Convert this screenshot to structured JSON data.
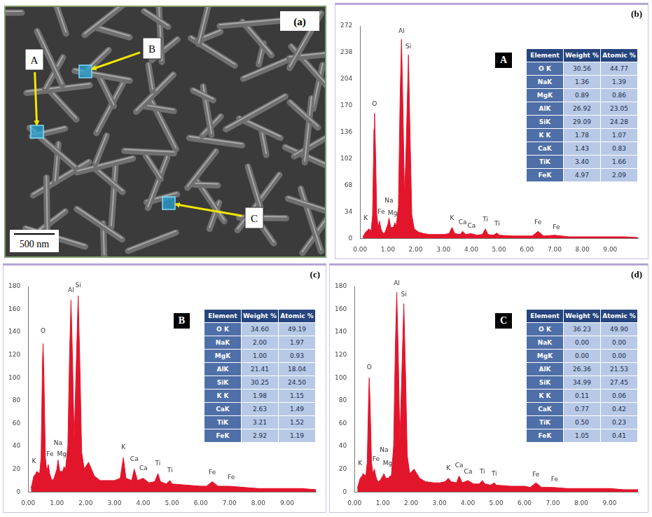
{
  "sem_image": {
    "panel_label": "(a)",
    "scale_bar": "500 nm",
    "spots": [
      "A",
      "B",
      "C"
    ]
  },
  "chart_data": [
    {
      "type": "line",
      "panel_label": "(b)",
      "spot": "A",
      "color": "#e3152b",
      "grid": false,
      "x": [
        0.1,
        0.2,
        0.27,
        0.3,
        0.4,
        0.45,
        0.5,
        0.52,
        0.55,
        0.6,
        0.65,
        0.7,
        0.75,
        0.8,
        0.85,
        0.9,
        1.0,
        1.04,
        1.1,
        1.2,
        1.25,
        1.3,
        1.38,
        1.44,
        1.49,
        1.54,
        1.6,
        1.66,
        1.74,
        1.8,
        1.86,
        1.95,
        2.1,
        2.3,
        2.5,
        2.8,
        3.0,
        3.2,
        3.31,
        3.4,
        3.6,
        3.69,
        3.8,
        4.0,
        4.2,
        4.4,
        4.51,
        4.6,
        4.8,
        4.93,
        5.0,
        5.5,
        6.0,
        6.2,
        6.4,
        6.6,
        7.0,
        7.5,
        8.0,
        8.5,
        9.0,
        9.5,
        10.0
      ],
      "values": [
        2,
        8,
        10,
        12,
        10,
        30,
        140,
        160,
        120,
        30,
        14,
        22,
        12,
        8,
        6,
        8,
        18,
        26,
        14,
        14,
        20,
        16,
        40,
        180,
        255,
        170,
        50,
        120,
        235,
        130,
        30,
        12,
        8,
        6,
        5,
        5,
        5,
        6,
        14,
        6,
        5,
        9,
        5,
        6,
        4,
        5,
        12,
        5,
        4,
        7,
        4,
        3,
        3,
        3,
        9,
        3,
        4,
        2,
        2,
        2,
        2,
        2,
        1
      ],
      "xlim": [
        0,
        10
      ],
      "xticks": [
        {
          "value": 0,
          "label": "0.00"
        },
        {
          "value": 1,
          "label": "1.00"
        },
        {
          "value": 2,
          "label": "2.00"
        },
        {
          "value": 3,
          "label": "3.00"
        },
        {
          "value": 4,
          "label": "4.00"
        },
        {
          "value": 5,
          "label": "5.00"
        },
        {
          "value": 6,
          "label": "6.00"
        },
        {
          "value": 7,
          "label": "7.00"
        },
        {
          "value": 8,
          "label": "8.00"
        },
        {
          "value": 9,
          "label": "9.00"
        }
      ],
      "ylim": [
        0,
        272
      ],
      "yticks": [
        0,
        34,
        68,
        102,
        136,
        170,
        204,
        238,
        272
      ],
      "peak_labels": [
        {
          "text": "K",
          "x": 0.2,
          "y": 22
        },
        {
          "text": "O",
          "x": 0.52,
          "y": 168
        },
        {
          "text": "Fe",
          "x": 0.76,
          "y": 30
        },
        {
          "text": "Na",
          "x": 1.04,
          "y": 44
        },
        {
          "text": "Mg",
          "x": 1.17,
          "y": 28
        },
        {
          "text": "Al",
          "x": 1.49,
          "y": 261
        },
        {
          "text": "Si",
          "x": 1.74,
          "y": 241
        },
        {
          "text": "K",
          "x": 3.31,
          "y": 22
        },
        {
          "text": "Ca",
          "x": 3.69,
          "y": 16
        },
        {
          "text": "Ca",
          "x": 4.01,
          "y": 12
        },
        {
          "text": "Ti",
          "x": 4.51,
          "y": 20
        },
        {
          "text": "Ti",
          "x": 4.93,
          "y": 14
        },
        {
          "text": "Fe",
          "x": 6.4,
          "y": 16
        },
        {
          "text": "Fe",
          "x": 7.06,
          "y": 10
        }
      ],
      "table": {
        "columns": [
          "Element",
          "Weight %",
          "Atomic %"
        ],
        "rows": [
          [
            "O K",
            "30.56",
            "44.77"
          ],
          [
            "NaK",
            "1.36",
            "1.39"
          ],
          [
            "MgK",
            "0.89",
            "0.86"
          ],
          [
            "AlK",
            "26.92",
            "23.05"
          ],
          [
            "SiK",
            "29.09",
            "24.28"
          ],
          [
            "K K",
            "1.78",
            "1.07"
          ],
          [
            "CaK",
            "1.43",
            "0.83"
          ],
          [
            "TiK",
            "3.40",
            "1.66"
          ],
          [
            "FeK",
            "4.97",
            "2.09"
          ]
        ]
      }
    },
    {
      "type": "line",
      "panel_label": "(c)",
      "spot": "B",
      "color": "#e3152b",
      "grid": false,
      "x": [
        0.1,
        0.2,
        0.27,
        0.3,
        0.4,
        0.45,
        0.5,
        0.52,
        0.55,
        0.6,
        0.65,
        0.7,
        0.75,
        0.8,
        0.85,
        0.9,
        1.0,
        1.04,
        1.1,
        1.2,
        1.25,
        1.3,
        1.38,
        1.44,
        1.49,
        1.54,
        1.6,
        1.66,
        1.74,
        1.8,
        1.86,
        1.95,
        2.1,
        2.3,
        2.5,
        2.8,
        3.0,
        3.2,
        3.31,
        3.4,
        3.6,
        3.69,
        3.8,
        4.0,
        4.2,
        4.4,
        4.51,
        4.6,
        4.8,
        4.93,
        5.0,
        5.5,
        6.0,
        6.2,
        6.4,
        6.6,
        7.0,
        7.5,
        8.0,
        8.5,
        9.0,
        9.5,
        10.0
      ],
      "values": [
        3,
        14,
        16,
        18,
        16,
        30,
        115,
        130,
        100,
        30,
        18,
        24,
        16,
        12,
        10,
        12,
        20,
        28,
        18,
        18,
        22,
        20,
        40,
        120,
        168,
        120,
        45,
        100,
        172,
        110,
        35,
        20,
        26,
        14,
        10,
        10,
        10,
        12,
        30,
        12,
        10,
        20,
        10,
        12,
        8,
        9,
        16,
        9,
        7,
        10,
        7,
        6,
        5,
        5,
        9,
        5,
        5,
        4,
        3,
        3,
        3,
        3,
        2
      ],
      "xlim": [
        0,
        10
      ],
      "xticks": [
        {
          "value": 0,
          "label": "0.00"
        },
        {
          "value": 1,
          "label": "1.00"
        },
        {
          "value": 2,
          "label": "2.00"
        },
        {
          "value": 3,
          "label": "3.00"
        },
        {
          "value": 4,
          "label": "4.00"
        },
        {
          "value": 5,
          "label": "5.00"
        },
        {
          "value": 6,
          "label": "6.00"
        },
        {
          "value": 7,
          "label": "7.00"
        },
        {
          "value": 8,
          "label": "8.00"
        },
        {
          "value": 9,
          "label": "9.00"
        }
      ],
      "ylim": [
        0,
        180
      ],
      "yticks": [
        0,
        20,
        40,
        60,
        80,
        100,
        120,
        140,
        160,
        180
      ],
      "peak_labels": [
        {
          "text": "K",
          "x": 0.2,
          "y": 24
        },
        {
          "text": "O",
          "x": 0.52,
          "y": 138
        },
        {
          "text": "Fe",
          "x": 0.76,
          "y": 30
        },
        {
          "text": "Na",
          "x": 1.04,
          "y": 40
        },
        {
          "text": "Mg",
          "x": 1.17,
          "y": 30
        },
        {
          "text": "Al",
          "x": 1.49,
          "y": 174
        },
        {
          "text": "Si",
          "x": 1.74,
          "y": 178
        },
        {
          "text": "K",
          "x": 3.31,
          "y": 36
        },
        {
          "text": "Ca",
          "x": 3.69,
          "y": 26
        },
        {
          "text": "Ca",
          "x": 4.01,
          "y": 18
        },
        {
          "text": "Ti",
          "x": 4.51,
          "y": 22
        },
        {
          "text": "Ti",
          "x": 4.93,
          "y": 16
        },
        {
          "text": "Fe",
          "x": 6.4,
          "y": 14
        },
        {
          "text": "Fe",
          "x": 7.06,
          "y": 10
        }
      ],
      "table": {
        "columns": [
          "Element",
          "Weight %",
          "Atomic %"
        ],
        "rows": [
          [
            "O K",
            "34.60",
            "49.19"
          ],
          [
            "NaK",
            "2.00",
            "1.97"
          ],
          [
            "MgK",
            "1.00",
            "0.93"
          ],
          [
            "AlK",
            "21.41",
            "18.04"
          ],
          [
            "SiK",
            "30.25",
            "24.50"
          ],
          [
            "K K",
            "1.98",
            "1.15"
          ],
          [
            "CaK",
            "2.63",
            "1.49"
          ],
          [
            "TiK",
            "3.21",
            "1.52"
          ],
          [
            "FeK",
            "2.92",
            "1.19"
          ]
        ]
      }
    },
    {
      "type": "line",
      "panel_label": "(d)",
      "spot": "C",
      "color": "#e3152b",
      "grid": false,
      "x": [
        0.1,
        0.2,
        0.27,
        0.3,
        0.4,
        0.45,
        0.5,
        0.52,
        0.55,
        0.6,
        0.65,
        0.7,
        0.75,
        0.8,
        0.85,
        0.9,
        1.0,
        1.04,
        1.1,
        1.2,
        1.25,
        1.3,
        1.38,
        1.44,
        1.49,
        1.54,
        1.6,
        1.66,
        1.74,
        1.8,
        1.86,
        1.95,
        2.1,
        2.3,
        2.5,
        2.8,
        3.0,
        3.2,
        3.31,
        3.4,
        3.6,
        3.69,
        3.8,
        4.0,
        4.2,
        4.4,
        4.51,
        4.6,
        4.8,
        4.93,
        5.0,
        5.5,
        6.0,
        6.2,
        6.4,
        6.6,
        7.0,
        7.5,
        8.0,
        8.5,
        9.0,
        9.5,
        10.0
      ],
      "values": [
        3,
        12,
        14,
        16,
        14,
        26,
        85,
        100,
        78,
        26,
        16,
        20,
        14,
        10,
        9,
        10,
        14,
        16,
        12,
        12,
        14,
        14,
        40,
        125,
        175,
        125,
        45,
        95,
        165,
        105,
        32,
        16,
        20,
        12,
        9,
        8,
        8,
        9,
        12,
        9,
        8,
        14,
        8,
        10,
        7,
        7,
        10,
        7,
        6,
        8,
        6,
        5,
        5,
        4,
        8,
        4,
        4,
        3,
        3,
        3,
        3,
        2,
        2
      ],
      "xlim": [
        0,
        10
      ],
      "xticks": [
        {
          "value": 0,
          "label": "0.00"
        },
        {
          "value": 1,
          "label": "1.00"
        },
        {
          "value": 2,
          "label": "2.00"
        },
        {
          "value": 3,
          "label": "3.00"
        },
        {
          "value": 4,
          "label": "4.00"
        },
        {
          "value": 5,
          "label": "5.00"
        },
        {
          "value": 6,
          "label": "6.00"
        },
        {
          "value": 7,
          "label": "7.00"
        },
        {
          "value": 8,
          "label": "8.00"
        },
        {
          "value": 9,
          "label": "9.00"
        }
      ],
      "ylim": [
        0,
        180
      ],
      "yticks": [
        0,
        20,
        40,
        60,
        80,
        100,
        120,
        140,
        160,
        180
      ],
      "peak_labels": [
        {
          "text": "K",
          "x": 0.2,
          "y": 22
        },
        {
          "text": "O",
          "x": 0.52,
          "y": 106
        },
        {
          "text": "Fe",
          "x": 0.76,
          "y": 26
        },
        {
          "text": "Na",
          "x": 1.04,
          "y": 34
        },
        {
          "text": "Mg",
          "x": 1.17,
          "y": 22
        },
        {
          "text": "Al",
          "x": 1.49,
          "y": 180
        },
        {
          "text": "Si",
          "x": 1.74,
          "y": 170
        },
        {
          "text": "K",
          "x": 3.31,
          "y": 18
        },
        {
          "text": "Ca",
          "x": 3.69,
          "y": 20
        },
        {
          "text": "Ca",
          "x": 4.01,
          "y": 15
        },
        {
          "text": "Ti",
          "x": 4.51,
          "y": 15
        },
        {
          "text": "Ti",
          "x": 4.93,
          "y": 13
        },
        {
          "text": "Fe",
          "x": 6.4,
          "y": 12
        },
        {
          "text": "Fe",
          "x": 7.06,
          "y": 8
        }
      ],
      "table": {
        "columns": [
          "Element",
          "Weight %",
          "Atomic %"
        ],
        "rows": [
          [
            "O K",
            "36.23",
            "49.90"
          ],
          [
            "NaK",
            "0.00",
            "0.00"
          ],
          [
            "MgK",
            "0.00",
            "0.00"
          ],
          [
            "AlK",
            "26.36",
            "21.53"
          ],
          [
            "SiK",
            "34.99",
            "27.45"
          ],
          [
            "K K",
            "0.11",
            "0.06"
          ],
          [
            "CaK",
            "0.77",
            "0.42"
          ],
          [
            "TiK",
            "0.50",
            "0.23"
          ],
          [
            "FeK",
            "1.05",
            "0.41"
          ]
        ]
      }
    }
  ]
}
